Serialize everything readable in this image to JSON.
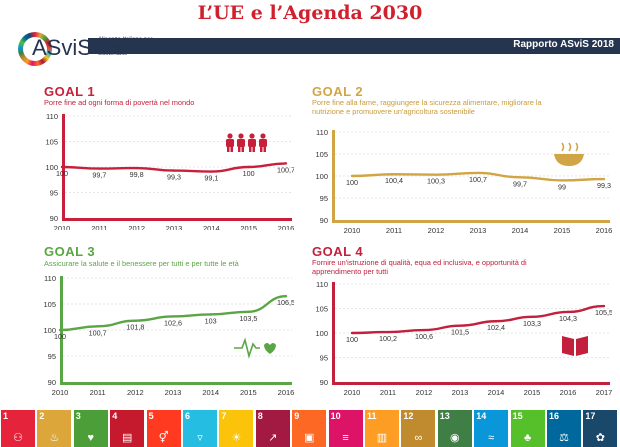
{
  "title": "L’UE e l’Agenda 2030",
  "header": {
    "report_label": "Rapporto ASviS 2018",
    "logo_word": "ASviS",
    "logo_sub": "Alleanza Italiana per lo Sviluppo Sostenibile"
  },
  "sdg_strip": [
    {
      "n": "1",
      "color": "#e5243b",
      "icon": "people-icon"
    },
    {
      "n": "2",
      "color": "#dda63a",
      "icon": "bowl-icon"
    },
    {
      "n": "3",
      "color": "#4c9f38",
      "icon": "heartbeat-icon"
    },
    {
      "n": "4",
      "color": "#c5192d",
      "icon": "book-icon"
    },
    {
      "n": "5",
      "color": "#ff3a21",
      "icon": "gender-icon"
    },
    {
      "n": "6",
      "color": "#26bde2",
      "icon": "water-icon"
    },
    {
      "n": "7",
      "color": "#fcc30b",
      "icon": "sun-icon"
    },
    {
      "n": "8",
      "color": "#a21942",
      "icon": "growth-icon"
    },
    {
      "n": "9",
      "color": "#fd6925",
      "icon": "cubes-icon"
    },
    {
      "n": "10",
      "color": "#dd1367",
      "icon": "equal-icon"
    },
    {
      "n": "11",
      "color": "#fd9d24",
      "icon": "city-icon"
    },
    {
      "n": "12",
      "color": "#bf8b2e",
      "icon": "infinity-icon"
    },
    {
      "n": "13",
      "color": "#3f7e44",
      "icon": "eye-globe-icon"
    },
    {
      "n": "14",
      "color": "#0a97d9",
      "icon": "fish-icon"
    },
    {
      "n": "15",
      "color": "#56c02b",
      "icon": "tree-icon"
    },
    {
      "n": "16",
      "color": "#00689d",
      "icon": "dove-icon"
    },
    {
      "n": "17",
      "color": "#19486a",
      "icon": "flower-icon"
    }
  ],
  "chart_data": [
    {
      "type": "line",
      "goal": "GOAL 1",
      "title": "Porre fine ad ogni forma di povertà nel mondo",
      "color": "#c8203a",
      "icon": "people-icon",
      "x": [
        "2010",
        "2011",
        "2012",
        "2013",
        "2014",
        "2015",
        "2016"
      ],
      "values": [
        100,
        99.7,
        99.8,
        99.3,
        99.1,
        100,
        100.7
      ],
      "labels": [
        "100",
        "99,7",
        "99,8",
        "99,3",
        "99,1",
        "100",
        "100,7"
      ],
      "yticks": [
        "90",
        "95",
        "100",
        "105",
        "110"
      ],
      "ylim": [
        90,
        110
      ]
    },
    {
      "type": "line",
      "goal": "GOAL 2",
      "title": "Porre fine alla fame, raggiungere la sicurezza alimentare, migliorare la nutrizione e promuovere un'agricoltura sostenibile",
      "color": "#d1a545",
      "icon": "bowl-icon",
      "x": [
        "2010",
        "2011",
        "2012",
        "2013",
        "2014",
        "2015",
        "2016"
      ],
      "values": [
        100,
        100.4,
        100.3,
        100.7,
        99.7,
        99,
        99.3
      ],
      "labels": [
        "100",
        "100,4",
        "100,3",
        "100,7",
        "99,7",
        "99",
        "99,3"
      ],
      "yticks": [
        "90",
        "95",
        "100",
        "105",
        "110"
      ],
      "ylim": [
        90,
        110
      ]
    },
    {
      "type": "line",
      "goal": "GOAL 3",
      "title": "Assicurare la salute e il benessere per tutti e per tutte le età",
      "color": "#5aa545",
      "icon": "heartbeat-icon",
      "x": [
        "2010",
        "2011",
        "2012",
        "2013",
        "2014",
        "2015",
        "2016"
      ],
      "values": [
        100,
        100.7,
        101.8,
        102.6,
        103,
        103.5,
        106.5
      ],
      "labels": [
        "100",
        "100,7",
        "101,8",
        "102,6",
        "103",
        "103,5",
        "106,5"
      ],
      "yticks": [
        "90",
        "95",
        "100",
        "105",
        "110"
      ],
      "ylim": [
        90,
        110
      ]
    },
    {
      "type": "line",
      "goal": "GOAL 4",
      "title": "Fornire un'istruzione di qualità, equa ed inclusiva, e opportunità di apprendimento per tutti",
      "color": "#c2203c",
      "icon": "book-icon",
      "x": [
        "2010",
        "2011",
        "2012",
        "2013",
        "2014",
        "2015",
        "2016",
        "2017"
      ],
      "values": [
        100,
        100.2,
        100.6,
        101.5,
        102.4,
        103.3,
        104.3,
        105.5
      ],
      "labels": [
        "100",
        "100,2",
        "100,6",
        "101,5",
        "102,4",
        "103,3",
        "104,3",
        "105,5"
      ],
      "yticks": [
        "90",
        "95",
        "100",
        "105",
        "110"
      ],
      "ylim": [
        90,
        110
      ]
    }
  ]
}
